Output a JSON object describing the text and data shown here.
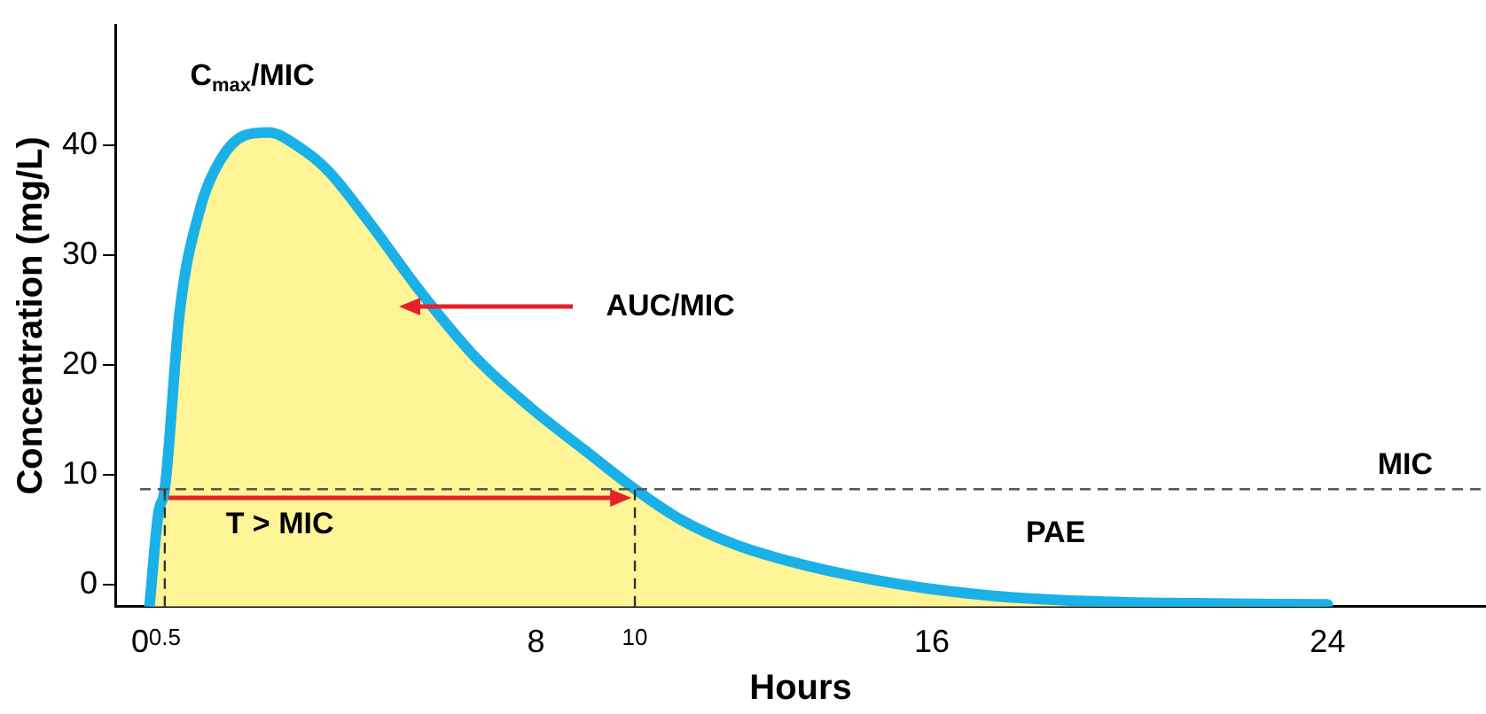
{
  "chart_data": {
    "type": "area",
    "xlabel": "Hours",
    "ylabel": "Concentration (mg/L)",
    "x": [
      0.19,
      0.37,
      0.5,
      0.8,
      1.2,
      1.6,
      2.1,
      2.6,
      3.2,
      3.8,
      4.6,
      5.7,
      6.8,
      7.9,
      9.0,
      10,
      10.9,
      12,
      13.5,
      15.4,
      17.2,
      19.1,
      21.3,
      24
    ],
    "series": [
      {
        "color": "#fff596",
        "values": [
          -2,
          6.5,
          8.7,
          24.8,
          34,
          38.5,
          40.9,
          41.2,
          39.9,
          37.7,
          33.2,
          26.5,
          20.6,
          16.1,
          12.2,
          8.7,
          6,
          3.7,
          1.7,
          0,
          -1,
          -1.5,
          -1.7,
          -1.8
        ]
      }
    ],
    "xlim": [
      -0.5,
      27.2
    ],
    "ylim": [
      -2,
      51
    ],
    "xticks": [
      0,
      {
        "value": 0.5,
        "label": "0.5"
      },
      8,
      {
        "value": 10,
        "label": "10"
      },
      16,
      24
    ],
    "yticks": [
      0,
      10,
      20,
      30,
      40
    ],
    "grid": false,
    "legend": false,
    "marker": "none",
    "line_style": "solid",
    "ref_lines": [
      {
        "axis": "y",
        "value": 8.7,
        "label": "MIC",
        "color": "#555555",
        "line_style": "dashed"
      },
      {
        "axis": "x",
        "value": 0.5,
        "color": "#333333",
        "line_style": "dashed"
      },
      {
        "axis": "x",
        "value": 10,
        "color": "#333333",
        "line_style": "dashed"
      }
    ],
    "annotations": [
      "C$_{max}$/MIC",
      "AUC/MIC",
      "T > MIC",
      "PAE"
    ]
  }
}
